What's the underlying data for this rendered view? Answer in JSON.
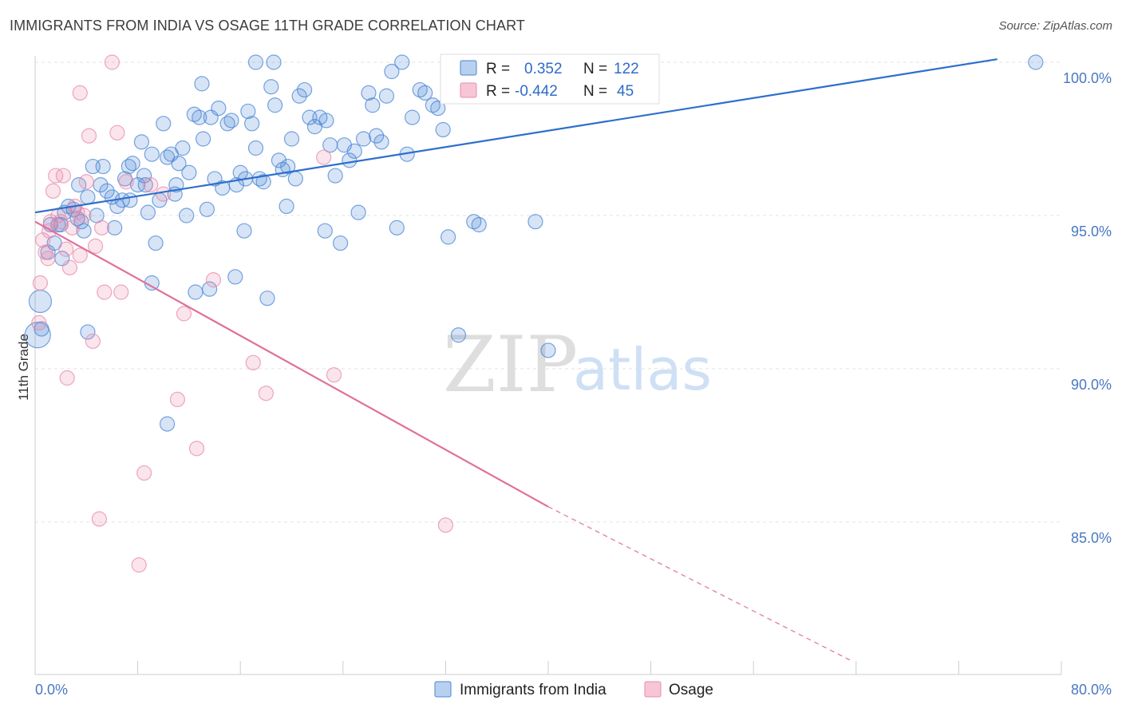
{
  "title": "IMMIGRANTS FROM INDIA VS OSAGE 11TH GRADE CORRELATION CHART",
  "source": "Source: ZipAtlas.com",
  "watermark": {
    "zip": "ZIP",
    "atlas": "atlas"
  },
  "colors": {
    "india": "#4a86d4",
    "osage": "#e88aaa",
    "india_line": "#2d6fcc",
    "osage_line": "#e0709b"
  },
  "legend": {
    "india": {
      "r_label": "R =",
      "r_value": "0.352",
      "n_label": "N =",
      "n_value": "122"
    },
    "osage": {
      "r_label": "R =",
      "r_value": "-0.442",
      "n_label": "N =",
      "n_value": "45"
    }
  },
  "bottom_legend": {
    "india": "Immigrants from India",
    "osage": "Osage"
  },
  "chart_data": {
    "type": "scatter",
    "title": "IMMIGRANTS FROM INDIA VS OSAGE 11TH GRADE CORRELATION CHART",
    "xlabel": "",
    "ylabel": "11th Grade",
    "xlim": [
      0,
      80
    ],
    "ylim": [
      80.5,
      101
    ],
    "x_tick_labels": [
      "0.0%",
      "80.0%"
    ],
    "y_ticks": [
      85,
      90,
      95,
      100
    ],
    "y_tick_labels": [
      "85.0%",
      "90.0%",
      "95.0%",
      "100.0%"
    ],
    "grid": true,
    "legend_position": "top-center",
    "series": [
      {
        "name": "Immigrants from India",
        "r": 0.352,
        "n": 122,
        "trend": {
          "x": [
            0,
            75
          ],
          "y": [
            95.1,
            100.1
          ]
        },
        "points": [
          [
            0.4,
            92.2
          ],
          [
            0.2,
            91.1
          ],
          [
            0.5,
            91.3
          ],
          [
            1.0,
            93.8
          ],
          [
            1.5,
            94.1
          ],
          [
            1.8,
            94.7
          ],
          [
            2.1,
            93.6
          ],
          [
            2.3,
            95.1
          ],
          [
            2.6,
            95.3
          ],
          [
            3.0,
            95.2
          ],
          [
            3.4,
            96.0
          ],
          [
            3.6,
            94.8
          ],
          [
            3.8,
            94.5
          ],
          [
            4.1,
            95.6
          ],
          [
            4.5,
            96.6
          ],
          [
            4.8,
            95.0
          ],
          [
            5.3,
            96.6
          ],
          [
            5.6,
            95.8
          ],
          [
            6.0,
            95.6
          ],
          [
            6.4,
            95.3
          ],
          [
            6.8,
            95.5
          ],
          [
            7.0,
            96.2
          ],
          [
            7.3,
            96.6
          ],
          [
            7.6,
            96.7
          ],
          [
            8.0,
            96.0
          ],
          [
            8.3,
            97.4
          ],
          [
            8.5,
            96.3
          ],
          [
            8.8,
            95.1
          ],
          [
            9.1,
            97.0
          ],
          [
            9.4,
            94.1
          ],
          [
            9.7,
            95.5
          ],
          [
            10.0,
            98.0
          ],
          [
            10.3,
            96.9
          ],
          [
            10.6,
            97.0
          ],
          [
            10.9,
            95.7
          ],
          [
            11.2,
            96.7
          ],
          [
            11.5,
            97.2
          ],
          [
            11.8,
            95.0
          ],
          [
            12.0,
            96.4
          ],
          [
            12.4,
            98.3
          ],
          [
            12.8,
            98.2
          ],
          [
            13.1,
            97.5
          ],
          [
            13.4,
            95.2
          ],
          [
            13.7,
            98.2
          ],
          [
            14.0,
            96.2
          ],
          [
            14.3,
            98.5
          ],
          [
            14.6,
            95.9
          ],
          [
            15.0,
            98.0
          ],
          [
            15.3,
            98.1
          ],
          [
            15.7,
            96.0
          ],
          [
            16.0,
            96.4
          ],
          [
            16.3,
            94.5
          ],
          [
            16.6,
            98.4
          ],
          [
            16.9,
            98.0
          ],
          [
            17.2,
            97.2
          ],
          [
            17.5,
            96.2
          ],
          [
            17.8,
            96.1
          ],
          [
            18.1,
            92.3
          ],
          [
            18.4,
            99.2
          ],
          [
            18.7,
            98.6
          ],
          [
            19.0,
            96.8
          ],
          [
            19.3,
            96.5
          ],
          [
            19.6,
            95.3
          ],
          [
            20.0,
            97.5
          ],
          [
            20.3,
            96.2
          ],
          [
            20.6,
            98.9
          ],
          [
            21.0,
            99.1
          ],
          [
            21.4,
            98.2
          ],
          [
            21.8,
            97.9
          ],
          [
            22.2,
            98.2
          ],
          [
            22.6,
            94.5
          ],
          [
            23.0,
            97.3
          ],
          [
            23.4,
            96.3
          ],
          [
            23.8,
            94.1
          ],
          [
            24.1,
            97.3
          ],
          [
            24.5,
            96.8
          ],
          [
            24.9,
            97.1
          ],
          [
            25.2,
            95.1
          ],
          [
            25.6,
            97.5
          ],
          [
            26.0,
            99.0
          ],
          [
            26.3,
            98.6
          ],
          [
            26.6,
            97.6
          ],
          [
            27.0,
            97.4
          ],
          [
            27.4,
            98.9
          ],
          [
            27.8,
            99.7
          ],
          [
            28.2,
            94.6
          ],
          [
            28.6,
            100.0
          ],
          [
            29.0,
            97.0
          ],
          [
            29.4,
            98.2
          ],
          [
            30.0,
            99.1
          ],
          [
            30.4,
            99.0
          ],
          [
            31.0,
            98.6
          ],
          [
            31.4,
            98.5
          ],
          [
            31.8,
            97.8
          ],
          [
            32.2,
            94.3
          ],
          [
            33.0,
            91.1
          ],
          [
            34.2,
            94.8
          ],
          [
            34.6,
            94.7
          ],
          [
            36.0,
            99.0
          ],
          [
            39.0,
            94.8
          ],
          [
            40.0,
            90.6
          ],
          [
            17.2,
            100.0
          ],
          [
            18.6,
            100.0
          ],
          [
            13.0,
            99.3
          ],
          [
            6.2,
            94.6
          ],
          [
            7.4,
            95.5
          ],
          [
            9.1,
            92.8
          ],
          [
            12.5,
            92.5
          ],
          [
            13.6,
            92.6
          ],
          [
            15.6,
            93.0
          ],
          [
            10.3,
            88.2
          ],
          [
            4.1,
            91.2
          ],
          [
            2.0,
            94.7
          ],
          [
            1.2,
            94.7
          ],
          [
            3.3,
            94.9
          ],
          [
            5.1,
            96.0
          ],
          [
            8.6,
            96.0
          ],
          [
            11.0,
            96.0
          ],
          [
            16.4,
            96.2
          ],
          [
            19.7,
            96.6
          ],
          [
            78.0,
            100.0
          ],
          [
            22.7,
            98.1
          ]
        ]
      },
      {
        "name": "Osage",
        "r": -0.442,
        "n": 45,
        "trend": {
          "x": [
            0,
            40
          ],
          "y": [
            94.8,
            85.5
          ]
        },
        "trend_dashed": {
          "x": [
            40,
            63.5
          ],
          "y": [
            85.5,
            80.5
          ]
        },
        "points": [
          [
            0.3,
            91.5
          ],
          [
            0.4,
            92.8
          ],
          [
            0.6,
            94.2
          ],
          [
            0.8,
            93.8
          ],
          [
            1.0,
            93.6
          ],
          [
            1.2,
            94.8
          ],
          [
            1.4,
            95.8
          ],
          [
            1.6,
            96.3
          ],
          [
            1.8,
            95.0
          ],
          [
            2.0,
            94.8
          ],
          [
            2.2,
            96.3
          ],
          [
            2.4,
            93.9
          ],
          [
            2.5,
            89.7
          ],
          [
            2.7,
            93.3
          ],
          [
            2.9,
            94.6
          ],
          [
            3.1,
            95.3
          ],
          [
            3.3,
            95.1
          ],
          [
            3.5,
            99.0
          ],
          [
            3.8,
            95.0
          ],
          [
            4.0,
            96.1
          ],
          [
            4.2,
            97.6
          ],
          [
            4.5,
            90.9
          ],
          [
            4.7,
            94.0
          ],
          [
            5.0,
            85.1
          ],
          [
            5.2,
            94.6
          ],
          [
            5.4,
            92.5
          ],
          [
            6.0,
            100.0
          ],
          [
            6.4,
            97.7
          ],
          [
            6.7,
            92.5
          ],
          [
            7.1,
            96.1
          ],
          [
            8.1,
            83.6
          ],
          [
            8.5,
            86.6
          ],
          [
            9.0,
            96.0
          ],
          [
            10.0,
            95.7
          ],
          [
            11.1,
            89.0
          ],
          [
            11.6,
            91.8
          ],
          [
            12.6,
            87.4
          ],
          [
            13.9,
            92.9
          ],
          [
            17.0,
            90.2
          ],
          [
            18.0,
            89.2
          ],
          [
            22.5,
            96.9
          ],
          [
            23.3,
            89.8
          ],
          [
            32.0,
            84.9
          ],
          [
            3.5,
            93.7
          ],
          [
            1.1,
            94.5
          ]
        ]
      }
    ]
  }
}
